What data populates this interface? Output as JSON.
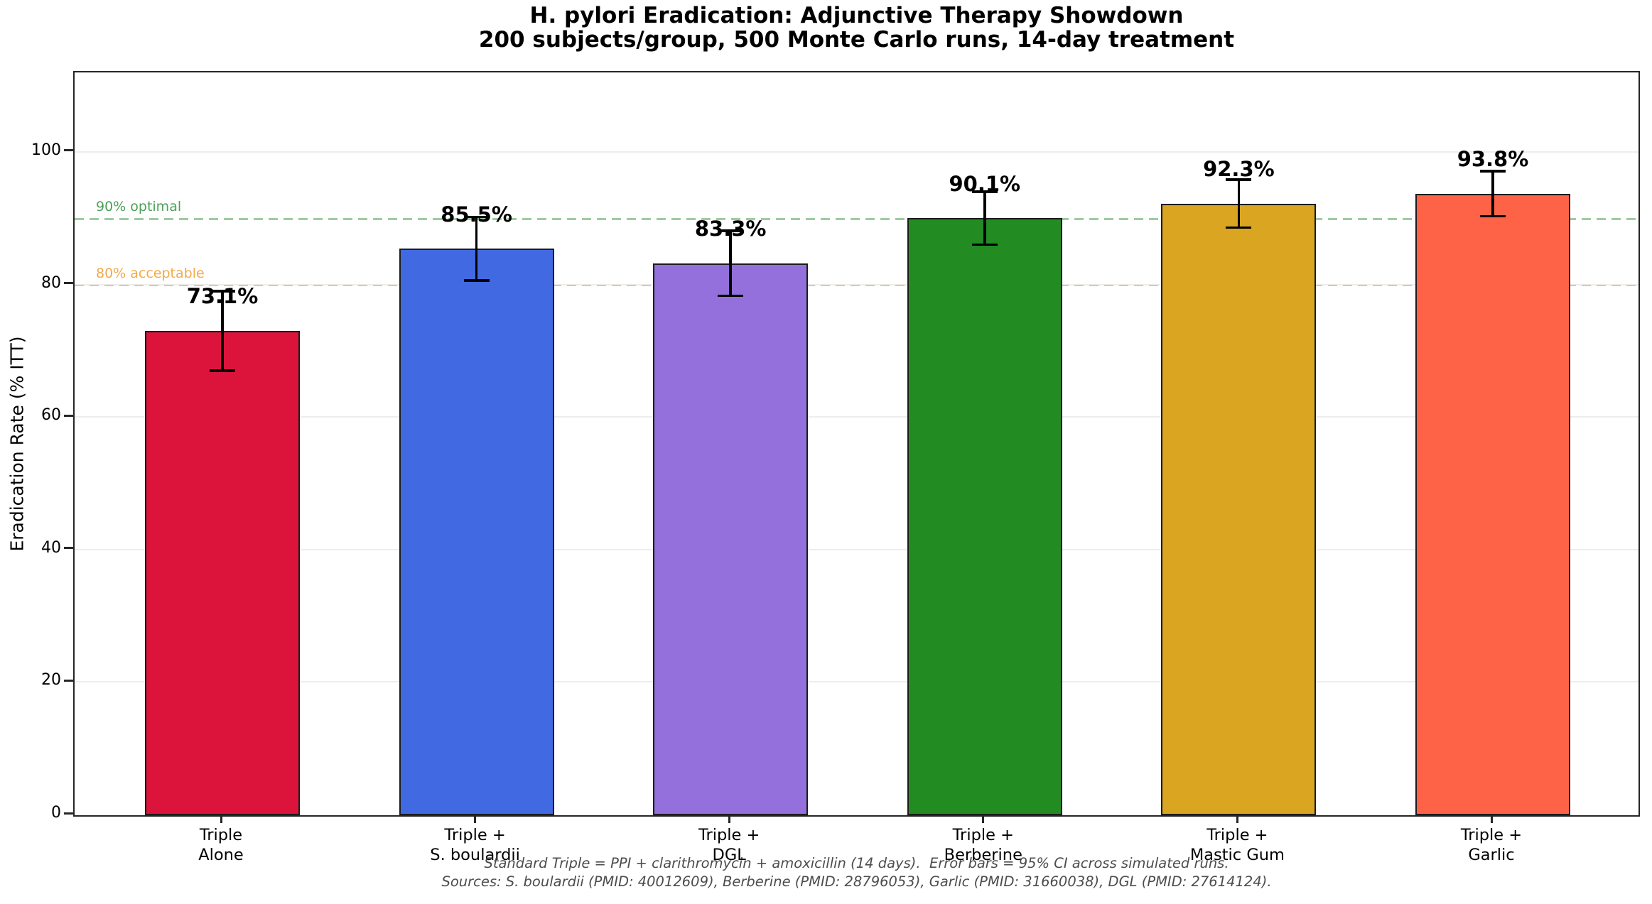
{
  "title": "H. pylori Eradication: Adjunctive Therapy Showdown",
  "subtitle": "200 subjects/group, 500 Monte Carlo runs, 14-day treatment",
  "footnotes": {
    "line1": "Standard Triple = PPI + clarithromycin + amoxicillin (14 days).  Error bars = 95% CI across simulated runs.",
    "line2": "Sources: S. boulardii (PMID: 40012609), Berberine (PMID: 28796053), Garlic (PMID: 31660038), DGL (PMID: 27614124)."
  },
  "chart_data": {
    "type": "bar",
    "title": "H. pylori Eradication: Adjunctive Therapy Showdown",
    "subtitle": "200 subjects/group, 500 Monte Carlo runs, 14-day treatment",
    "xlabel": "",
    "ylabel": "Eradication Rate (% ITT)",
    "ylim": [
      0,
      112
    ],
    "yticks": [
      0,
      20,
      40,
      60,
      80,
      100
    ],
    "grid": "faint horizontal gridlines at each y tick",
    "legend": "none",
    "categories": [
      "Triple\nAlone",
      "Triple +\nS. boulardii",
      "Triple +\nDGL",
      "Triple +\nBerberine",
      "Triple +\nMastic Gum",
      "Triple +\nGarlic"
    ],
    "values": [
      73.1,
      85.5,
      83.3,
      90.1,
      92.3,
      93.8
    ],
    "value_labels": [
      "73.1%",
      "85.5%",
      "83.3%",
      "90.1%",
      "92.3%",
      "93.8%"
    ],
    "ci95_halfwidth": [
      6.0,
      4.8,
      4.9,
      4.0,
      3.6,
      3.4
    ],
    "bar_colors": [
      "#DC143C",
      "#4169E1",
      "#9370DB",
      "#228B22",
      "#DAA520",
      "#FF6347"
    ],
    "bar_edge_color": "#1c1c1c",
    "error_bar_color": "#000000",
    "reference_lines": [
      {
        "y": 90,
        "label": "90% optimal",
        "text_color": "#4ba158",
        "line_color": "rgba(76,161,88,0.55)"
      },
      {
        "y": 80,
        "label": "80% acceptable",
        "text_color": "#f2a94a",
        "line_color": "rgba(255,176,76,0.75)"
      }
    ]
  }
}
